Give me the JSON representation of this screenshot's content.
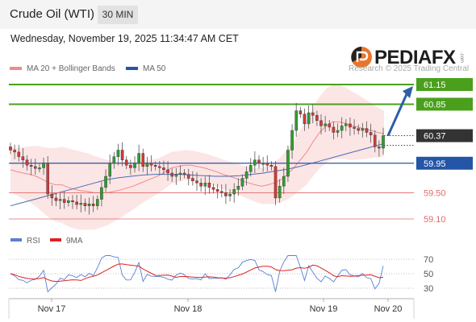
{
  "header": {
    "title": "Crude Oil (WTI)",
    "timeframe": "30 MIN"
  },
  "timestamp": "Wednesday, November 19, 2025 11:34:47 AM CET",
  "legend": {
    "ma20": "MA 20 + Bollinger Bands",
    "ma50": "MA 50"
  },
  "brand": {
    "name": "PEDIAFX",
    "superscript": ".com",
    "copyright": "Research © 2025 Trading Central"
  },
  "rsi_legend": {
    "rsi": "RSI",
    "ma": "9MA"
  },
  "colors": {
    "resistance_green": "#4aa01c",
    "support_blue": "#2455a6",
    "level_red": "#e06a6a",
    "candle_up": "#2f9e2f",
    "candle_down": "#d23a3a",
    "bollinger_fill": "#fbdcdc",
    "ma20": "#f08a8a",
    "ma50": "#4a6db0",
    "arrow": "#2d5ea8",
    "current_price_bg": "#333333"
  },
  "chart_data": [
    {
      "type": "candlestick",
      "title": "Crude Oil (WTI)",
      "timeframe": "30 MIN",
      "x_ticks": [
        "Nov 17",
        "Nov 18",
        "Nov 19",
        "Nov 20"
      ],
      "ylim": [
        58.7,
        61.5
      ],
      "levels": [
        {
          "label": "61.15",
          "value": 61.15,
          "kind": "resistance"
        },
        {
          "label": "60.85",
          "value": 60.85,
          "kind": "resistance"
        },
        {
          "label": "60.37",
          "value": 60.37,
          "kind": "current"
        },
        {
          "label": "59.95",
          "value": 59.95,
          "kind": "support"
        },
        {
          "label": "59.50",
          "value": 59.5,
          "kind": "support"
        },
        {
          "label": "59.10",
          "value": 59.1,
          "kind": "support"
        }
      ],
      "projection": {
        "from": 60.37,
        "to": 61.15
      },
      "close": [
        60.15,
        60.12,
        60.05,
        60.0,
        59.92,
        59.9,
        59.87,
        59.88,
        59.95,
        59.48,
        59.42,
        59.38,
        59.4,
        59.35,
        59.38,
        59.36,
        59.32,
        59.34,
        59.3,
        59.33,
        59.3,
        59.4,
        59.58,
        59.75,
        59.95,
        60.05,
        60.15,
        60.0,
        59.92,
        59.88,
        59.95,
        60.1,
        59.9,
        59.95,
        59.92,
        59.9,
        59.88,
        59.85,
        59.8,
        59.75,
        59.78,
        59.8,
        59.78,
        59.72,
        59.68,
        59.65,
        59.6,
        59.65,
        59.58,
        59.55,
        59.52,
        59.5,
        59.45,
        59.48,
        59.55,
        59.6,
        59.72,
        59.82,
        59.92,
        60.0,
        59.95,
        59.95,
        59.92,
        59.9,
        59.42,
        59.6,
        59.75,
        60.15,
        60.45,
        60.75,
        60.7,
        60.55,
        60.72,
        60.68,
        60.6,
        60.52,
        60.55,
        60.5,
        60.42,
        60.45,
        60.52,
        60.55,
        60.5,
        60.48,
        60.45,
        60.48,
        60.42,
        60.38,
        60.2,
        60.18,
        60.37
      ],
      "ma20": [
        59.85,
        59.82,
        59.8,
        59.78,
        59.75,
        59.7,
        59.65,
        59.62,
        59.62,
        59.58,
        59.55,
        59.53,
        59.52,
        59.5,
        59.5,
        59.5,
        59.52,
        59.54,
        59.57,
        59.6,
        59.64,
        59.68,
        59.72,
        59.76,
        59.82,
        59.88,
        59.9,
        59.92,
        59.92,
        59.9,
        59.88,
        59.85,
        59.82,
        59.78,
        59.75,
        59.72,
        59.68,
        59.65,
        59.62,
        59.6,
        59.62,
        59.65,
        59.7,
        59.78,
        59.88,
        60.0,
        60.12,
        60.28,
        60.42,
        60.52,
        60.58,
        60.58,
        60.56,
        60.52,
        60.5,
        60.47,
        60.45,
        60.42,
        60.4
      ],
      "ma50": [
        59.3,
        59.35,
        59.4,
        59.45,
        59.5,
        59.55,
        59.6,
        59.65,
        59.7,
        59.73,
        59.75,
        59.77,
        59.78,
        59.78,
        59.78,
        59.77,
        59.76,
        59.75,
        59.75,
        59.76,
        59.78,
        59.8,
        59.83,
        59.86,
        59.9,
        59.95,
        60.0,
        60.05,
        60.1,
        60.15,
        60.2,
        60.25
      ],
      "rsi_ticks": [
        70,
        50,
        30
      ]
    }
  ]
}
